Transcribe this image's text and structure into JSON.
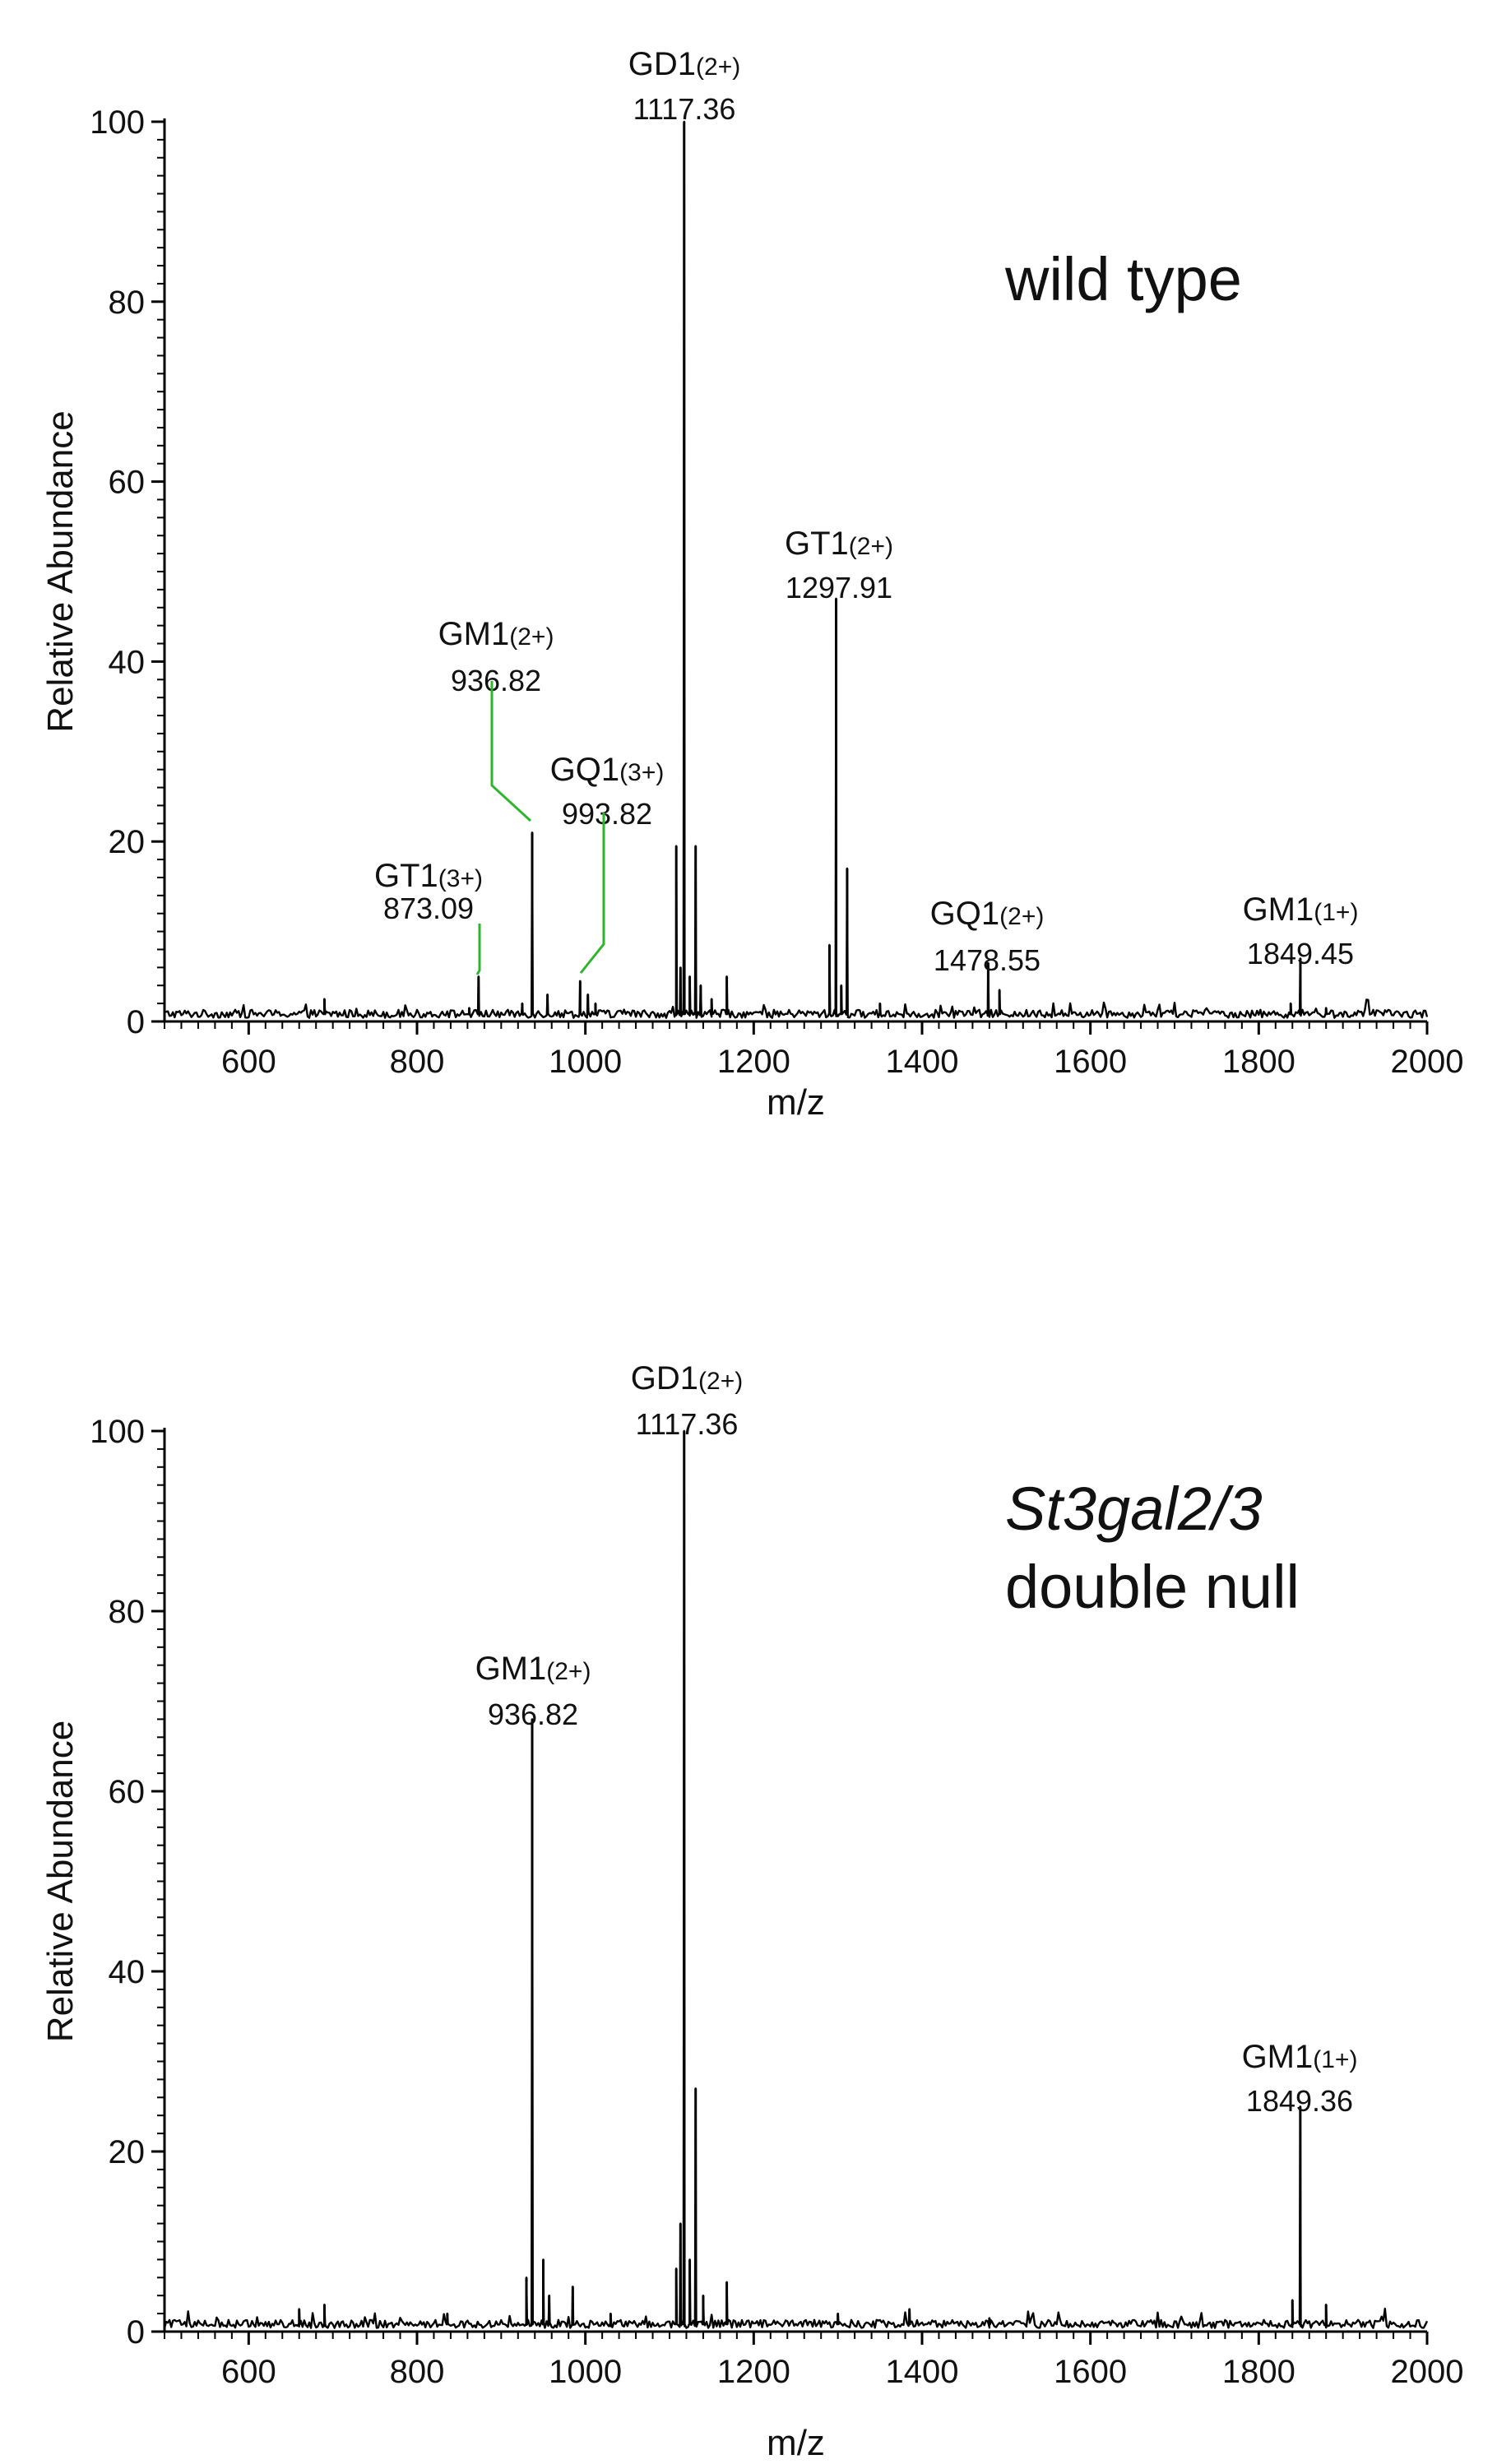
{
  "chart_data": [
    {
      "type": "line",
      "title": "wild type",
      "title_line2": "",
      "title_italic": false,
      "xlabel": "m/z",
      "ylabel": "Relative Abundance",
      "xlim": [
        500,
        2000
      ],
      "ylim": [
        0,
        100
      ],
      "xticks": [
        600,
        800,
        1000,
        1200,
        1400,
        1600,
        1800,
        2000
      ],
      "yticks": [
        0,
        20,
        40,
        60,
        80,
        100
      ],
      "grid": false,
      "line_color": "#000000",
      "leader_color": "#2db52d",
      "peaks": [
        {
          "mz": 690,
          "rel": 2.5
        },
        {
          "mz": 862,
          "rel": 1.5
        },
        {
          "mz": 873.09,
          "rel": 5
        },
        {
          "mz": 925,
          "rel": 2
        },
        {
          "mz": 936.82,
          "rel": 21
        },
        {
          "mz": 955,
          "rel": 3
        },
        {
          "mz": 993.82,
          "rel": 4.5
        },
        {
          "mz": 1003,
          "rel": 3
        },
        {
          "mz": 1012,
          "rel": 2
        },
        {
          "mz": 1108,
          "rel": 19.5
        },
        {
          "mz": 1113,
          "rel": 6
        },
        {
          "mz": 1117.36,
          "rel": 100
        },
        {
          "mz": 1124,
          "rel": 5
        },
        {
          "mz": 1131,
          "rel": 19.5
        },
        {
          "mz": 1137,
          "rel": 4
        },
        {
          "mz": 1150,
          "rel": 2.5
        },
        {
          "mz": 1168,
          "rel": 5
        },
        {
          "mz": 1290,
          "rel": 8.5
        },
        {
          "mz": 1297.91,
          "rel": 47
        },
        {
          "mz": 1304,
          "rel": 4
        },
        {
          "mz": 1311,
          "rel": 17
        },
        {
          "mz": 1350,
          "rel": 2
        },
        {
          "mz": 1478.55,
          "rel": 6.5
        },
        {
          "mz": 1492,
          "rel": 3.5
        },
        {
          "mz": 1838,
          "rel": 2
        },
        {
          "mz": 1849.45,
          "rel": 7
        },
        {
          "mz": 1880,
          "rel": 1.5
        }
      ],
      "annotations": [
        {
          "name": "GT1",
          "charge": "(3+)",
          "mz": "873.09"
        },
        {
          "name": "GM1",
          "charge": "(2+)",
          "mz": "936.82"
        },
        {
          "name": "GQ1",
          "charge": "(3+)",
          "mz": "993.82"
        },
        {
          "name": "GD1",
          "charge": "(2+)",
          "mz": "1117.36"
        },
        {
          "name": "GT1",
          "charge": "(2+)",
          "mz": "1297.91"
        },
        {
          "name": "GQ1",
          "charge": "(2+)",
          "mz": "1478.55"
        },
        {
          "name": "GM1",
          "charge": "(1+)",
          "mz": "1849.45"
        }
      ]
    },
    {
      "type": "line",
      "title": "St3gal2/3",
      "title_line2": "double null",
      "title_italic": true,
      "xlabel": "m/z",
      "ylabel": "Relative Abundance",
      "xlim": [
        500,
        2000
      ],
      "ylim": [
        0,
        100
      ],
      "xticks": [
        600,
        800,
        1000,
        1200,
        1400,
        1600,
        1800,
        2000
      ],
      "yticks": [
        0,
        20,
        40,
        60,
        80,
        100
      ],
      "grid": false,
      "line_color": "#000000",
      "leader_color": "#2db52d",
      "peaks": [
        {
          "mz": 660,
          "rel": 2.5
        },
        {
          "mz": 690,
          "rel": 3
        },
        {
          "mz": 836,
          "rel": 2
        },
        {
          "mz": 930,
          "rel": 6
        },
        {
          "mz": 936.82,
          "rel": 68
        },
        {
          "mz": 950,
          "rel": 8
        },
        {
          "mz": 957,
          "rel": 4
        },
        {
          "mz": 985,
          "rel": 5
        },
        {
          "mz": 1030,
          "rel": 2
        },
        {
          "mz": 1108,
          "rel": 7
        },
        {
          "mz": 1113,
          "rel": 12
        },
        {
          "mz": 1117.36,
          "rel": 100
        },
        {
          "mz": 1124,
          "rel": 8
        },
        {
          "mz": 1131,
          "rel": 27
        },
        {
          "mz": 1140,
          "rel": 4
        },
        {
          "mz": 1168,
          "rel": 5.5
        },
        {
          "mz": 1300,
          "rel": 2
        },
        {
          "mz": 1385,
          "rel": 2.5
        },
        {
          "mz": 1480,
          "rel": 1.5
        },
        {
          "mz": 1840,
          "rel": 3.5
        },
        {
          "mz": 1849.36,
          "rel": 25
        },
        {
          "mz": 1880,
          "rel": 3
        }
      ],
      "annotations": [
        {
          "name": "GM1",
          "charge": "(2+)",
          "mz": "936.82"
        },
        {
          "name": "GD1",
          "charge": "(2+)",
          "mz": "1117.36"
        },
        {
          "name": "GM1",
          "charge": "(1+)",
          "mz": "1849.36"
        }
      ]
    }
  ]
}
